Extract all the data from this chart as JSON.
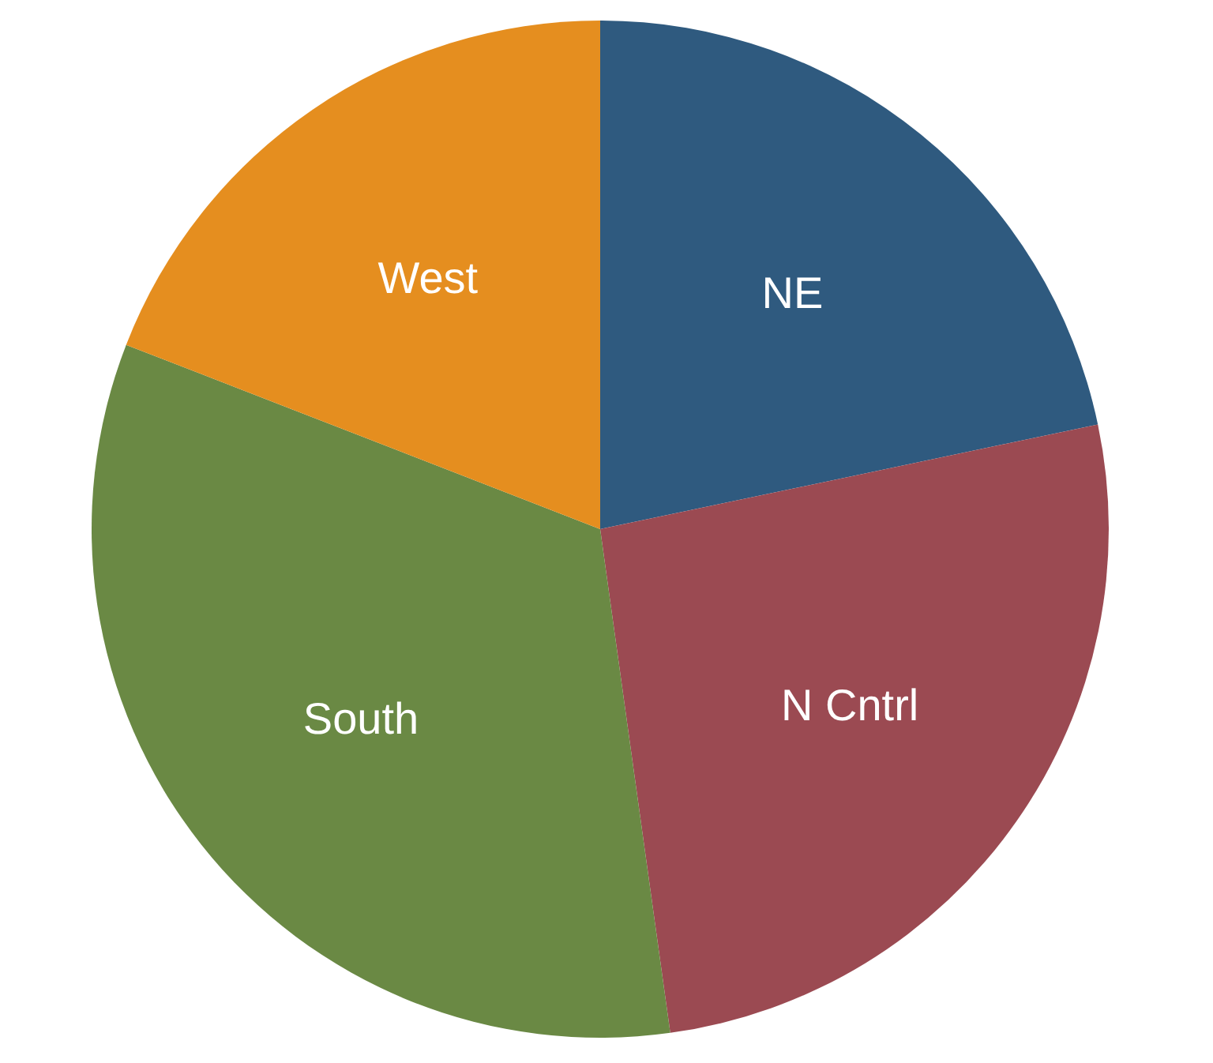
{
  "chart_data": {
    "type": "pie",
    "categories": [
      "NE",
      "N Cntrl",
      "South",
      "West"
    ],
    "values": [
      21.7,
      26.1,
      33.1,
      19.1
    ],
    "colors": [
      "#2f5a7f",
      "#9b4a52",
      "#6a8944",
      "#e58e1f"
    ]
  }
}
